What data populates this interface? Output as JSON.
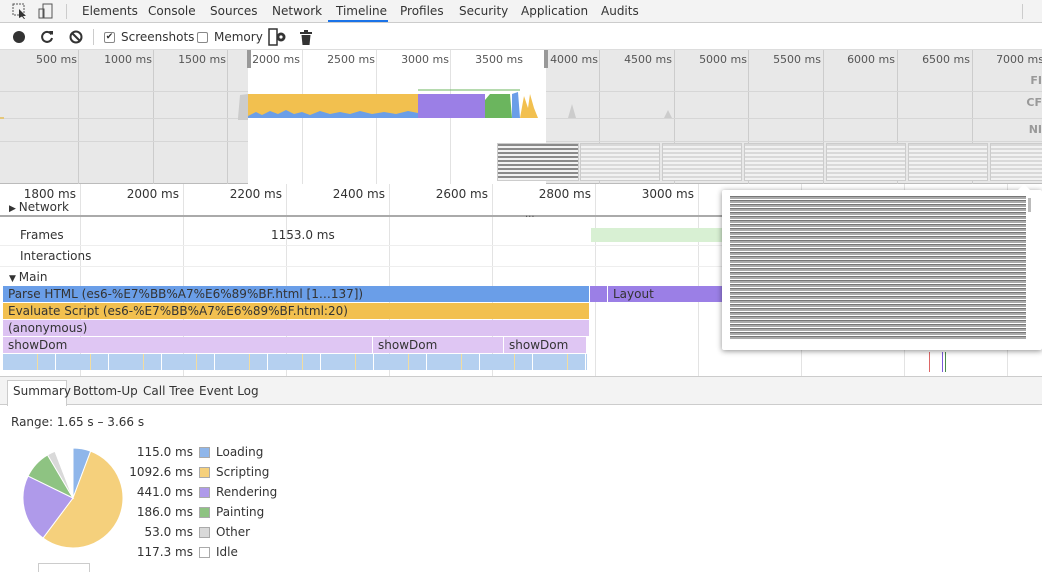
{
  "tabs": [
    {
      "label": "Elements"
    },
    {
      "label": "Console"
    },
    {
      "label": "Sources"
    },
    {
      "label": "Network"
    },
    {
      "label": "Timeline",
      "active": true
    },
    {
      "label": "Profiles"
    },
    {
      "label": "Security"
    },
    {
      "label": "Application"
    },
    {
      "label": "Audits"
    }
  ],
  "toolbar": {
    "screenshots_label": "Screenshots",
    "screenshots_checked": true,
    "memory_label": "Memory",
    "memory_checked": false
  },
  "overview": {
    "ticks": [
      "500 ms",
      "1000 ms",
      "1500 ms",
      "2000 ms",
      "2500 ms",
      "3000 ms",
      "3500 ms",
      "4000 ms",
      "4500 ms",
      "5000 ms",
      "5500 ms",
      "6000 ms",
      "6500 ms",
      "7000 ms"
    ],
    "row_labels": [
      "FI",
      "CF",
      "NI"
    ]
  },
  "detail": {
    "ticks": [
      "1800 ms",
      "2000 ms",
      "2200 ms",
      "2400 ms",
      "2600 ms",
      "2800 ms",
      "3000 ms"
    ],
    "network_label": "Network",
    "frames_label": "Frames",
    "frame_duration": "1153.0 ms",
    "interactions_label": "Interactions",
    "main_label": "Main",
    "flames": {
      "parse_html": "Parse HTML (es6-%E7%BB%A7%E6%89%BF.html [1…137])",
      "layout": "Layout",
      "evaluate_script": "Evaluate Script (es6-%E7%BB%A7%E6%89%BF.html:20)",
      "anonymous": "(anonymous)",
      "showdom": [
        "showDom",
        "showDom",
        "showDom"
      ]
    }
  },
  "summary": {
    "tabs": [
      "Summary",
      "Bottom-Up",
      "Call Tree",
      "Event Log"
    ],
    "range": "Range: 1.65 s – 3.66 s",
    "items": [
      {
        "value": "115.0 ms",
        "ms": 115.0,
        "label": "Loading",
        "color": "#8fb6ea"
      },
      {
        "value": "1092.6 ms",
        "ms": 1092.6,
        "label": "Scripting",
        "color": "#f5d07c"
      },
      {
        "value": "441.0 ms",
        "ms": 441.0,
        "label": "Rendering",
        "color": "#af9aea"
      },
      {
        "value": "186.0 ms",
        "ms": 186.0,
        "label": "Painting",
        "color": "#8ec382"
      },
      {
        "value": "53.0 ms",
        "ms": 53.0,
        "label": "Other",
        "color": "#d9d9d9"
      },
      {
        "value": "117.3 ms",
        "ms": 117.3,
        "label": "Idle",
        "color": "#ffffff"
      }
    ]
  },
  "colors": {
    "loading": "#6a9ee8",
    "scripting": "#f2c04f",
    "rendering": "#9b7fe6",
    "painting": "#6bb55e",
    "anonymous": "#dcc2f2",
    "showdom": "#dfc6f3",
    "leaf": "#b5d0f0",
    "frame": "#d8f0d3",
    "accent": "#1a73e8"
  }
}
